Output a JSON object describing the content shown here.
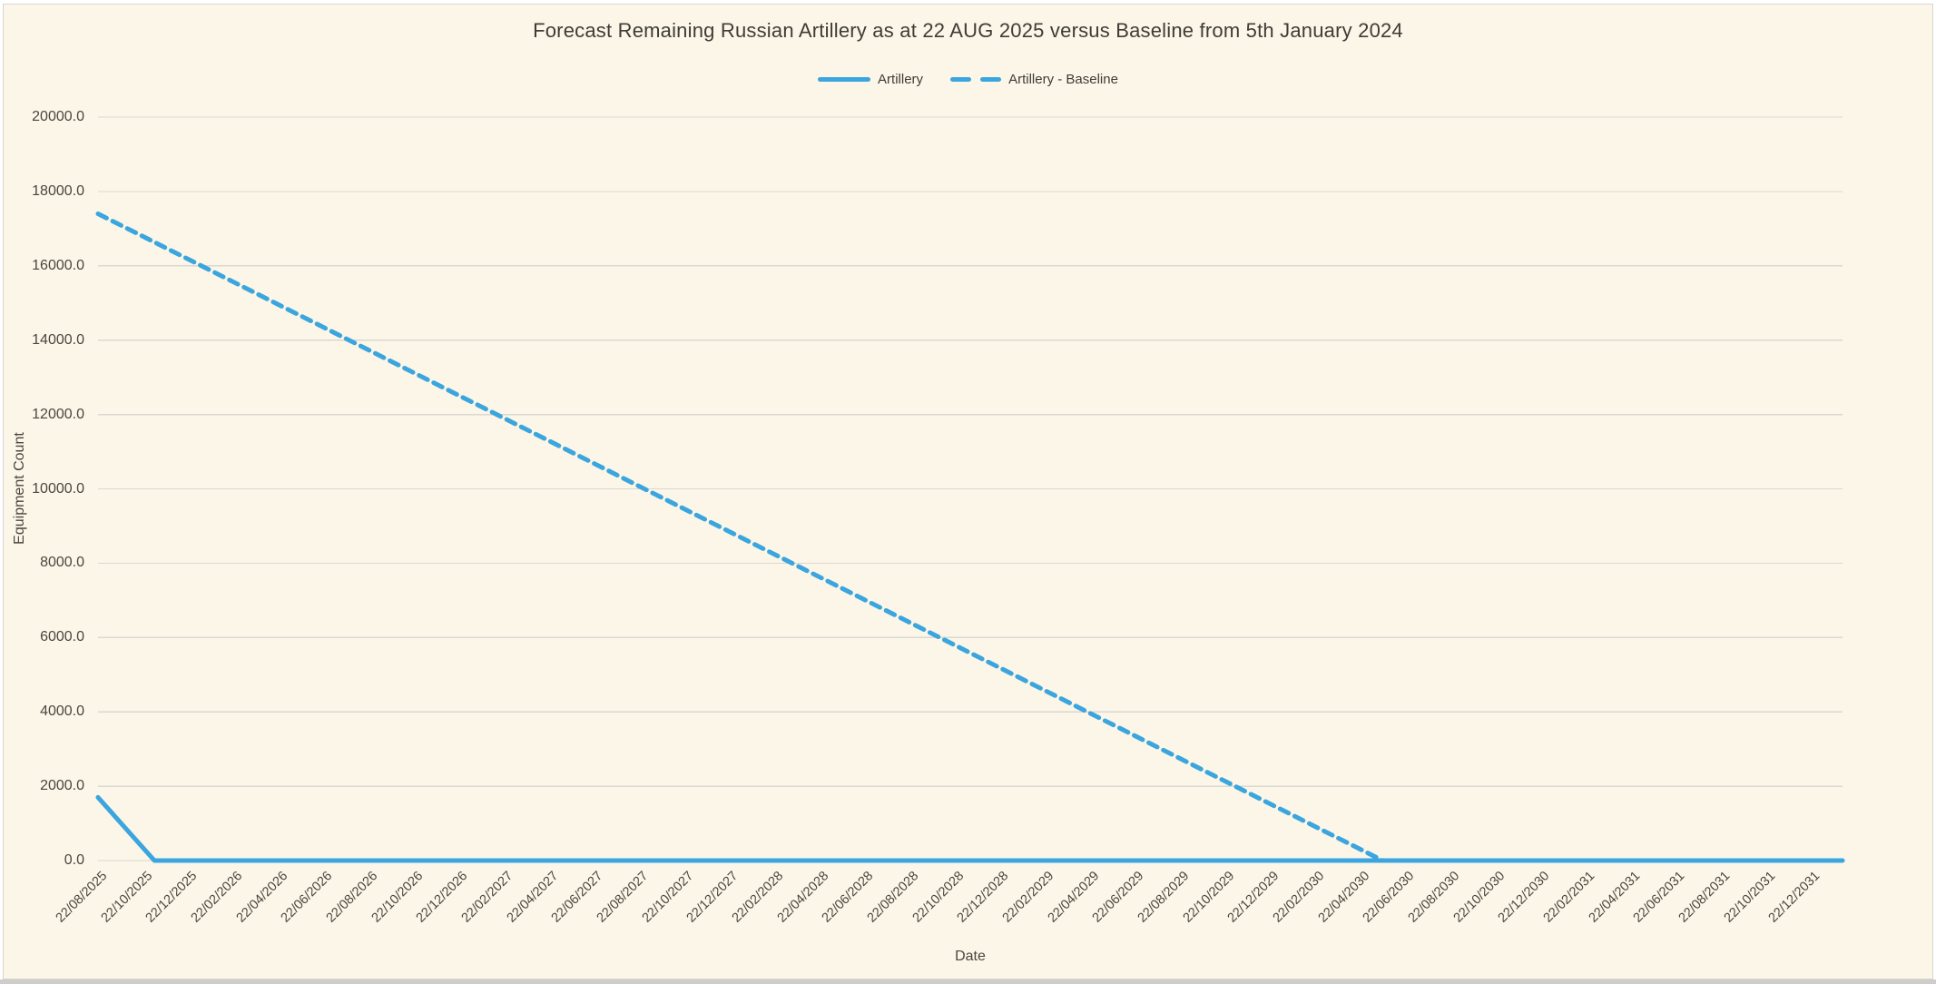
{
  "page": {
    "background_color": "#FFFFFF",
    "canvas_background_color": "#FBF6E7",
    "canvas_border_color": "#D9D6D0",
    "bottom_strip_color": "#CECDC9"
  },
  "legend": {
    "items": [
      {
        "label": "Artillery",
        "style": "solid"
      },
      {
        "label": "Artillery - Baseline",
        "style": "dashed"
      }
    ]
  },
  "chart_data": {
    "type": "line",
    "title": "Forecast Remaining Russian Artillery as at 22 AUG 2025 versus Baseline from 5th January 2024",
    "xlabel": "Date",
    "ylabel": "Equipment Count",
    "ylim": [
      0,
      20000
    ],
    "y_tick_step": 2000,
    "y_tick_labels": [
      "20000.0",
      "18000.0",
      "16000.0",
      "14000.0",
      "12000.0",
      "10000.0",
      "8000.0",
      "6000.0",
      "4000.0",
      "2000.0",
      "0.0"
    ],
    "x_tick_labels": [
      "22/08/2025",
      "22/10/2025",
      "22/12/2025",
      "22/02/2026",
      "22/04/2026",
      "22/06/2026",
      "22/08/2026",
      "22/10/2026",
      "22/12/2026",
      "22/02/2027",
      "22/04/2027",
      "22/06/2027",
      "22/08/2027",
      "22/10/2027",
      "22/12/2027",
      "22/02/2028",
      "22/04/2028",
      "22/06/2028",
      "22/08/2028",
      "22/10/2028",
      "22/12/2028",
      "22/02/2029",
      "22/04/2029",
      "22/06/2029",
      "22/08/2029",
      "22/10/2029",
      "22/12/2029",
      "22/02/2030",
      "22/04/2030",
      "22/06/2030",
      "22/08/2030",
      "22/10/2030",
      "22/12/2030",
      "22/02/2031",
      "22/04/2031",
      "22/06/2031",
      "22/08/2031",
      "22/10/2031",
      "22/12/2031"
    ],
    "x_tick_interval_months": 2,
    "x_axis_start": "22/08/2025",
    "x_axis_span_months": 77.4,
    "grid": "horizontal",
    "gridline_color": "#DBD8D3",
    "legend_position": "top-center",
    "series_color": "#3AA5DE",
    "series": [
      {
        "name": "Artillery",
        "line_style": "solid",
        "points": [
          {
            "x_months": 0,
            "value": 1700
          },
          {
            "x_months": 2.5,
            "value": 0
          },
          {
            "x_months": 77.4,
            "value": 0
          }
        ]
      },
      {
        "name": "Artillery - Baseline",
        "line_style": "dashed",
        "points": [
          {
            "x_months": 0,
            "value": 17400
          },
          {
            "x_months": 57,
            "value": 0
          }
        ]
      }
    ]
  }
}
